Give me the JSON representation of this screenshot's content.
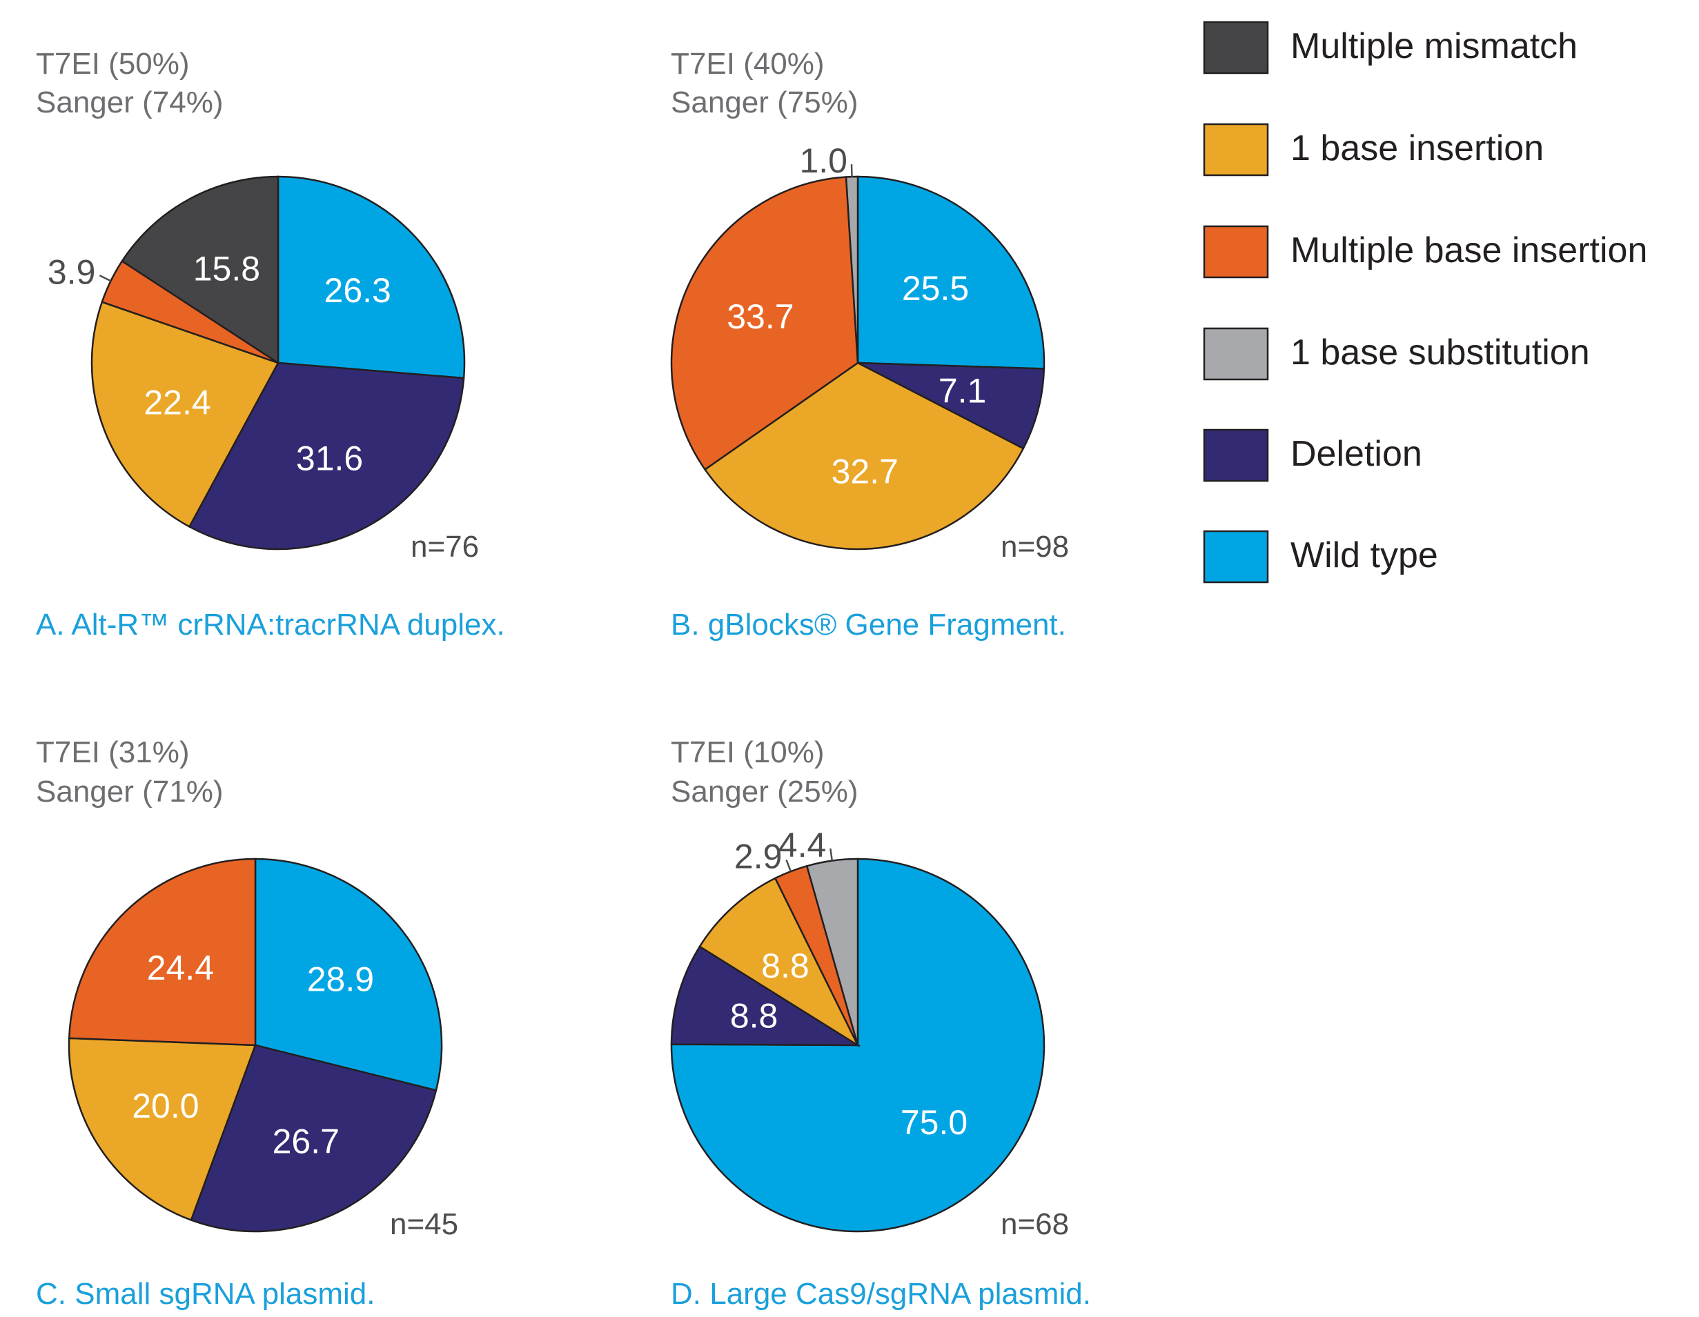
{
  "colors": {
    "multiple_mismatch": "#454547",
    "one_base_insertion": "#eba727",
    "multiple_base_insertion": "#e86424",
    "one_base_substitution": "#a7a9ac",
    "deletion": "#322b73",
    "wild_type": "#00a6e4",
    "caption": "#1aa0db",
    "header": "#6d6e71"
  },
  "legend": [
    {
      "key": "multiple_mismatch",
      "label": "Multiple mismatch"
    },
    {
      "key": "one_base_insertion",
      "label": "1 base insertion"
    },
    {
      "key": "multiple_base_insertion",
      "label": "Multiple base insertion"
    },
    {
      "key": "one_base_substitution",
      "label": "1 base substitution"
    },
    {
      "key": "deletion",
      "label": "Deletion"
    },
    {
      "key": "wild_type",
      "label": "Wild type"
    }
  ],
  "chart_data": [
    {
      "type": "pie",
      "id": "A",
      "t7ei": "T7EI (50%)",
      "sanger": "Sanger (74%)",
      "n": "n=76",
      "caption": "A. Alt-R™ crRNA:tracrRNA duplex.",
      "slices": [
        {
          "key": "wild_type",
          "value": 26.3,
          "label": "26.3"
        },
        {
          "key": "deletion",
          "value": 31.6,
          "label": "31.6"
        },
        {
          "key": "one_base_insertion",
          "value": 22.4,
          "label": "22.4"
        },
        {
          "key": "multiple_base_insertion",
          "value": 3.9,
          "label": "3.9"
        },
        {
          "key": "multiple_mismatch",
          "value": 15.8,
          "label": "15.8"
        }
      ]
    },
    {
      "type": "pie",
      "id": "B",
      "t7ei": "T7EI (40%)",
      "sanger": "Sanger (75%)",
      "n": "n=98",
      "caption": "B. gBlocks® Gene Fragment.",
      "slices": [
        {
          "key": "wild_type",
          "value": 25.5,
          "label": "25.5"
        },
        {
          "key": "deletion",
          "value": 7.1,
          "label": "7.1"
        },
        {
          "key": "one_base_insertion",
          "value": 32.7,
          "label": "32.7"
        },
        {
          "key": "multiple_base_insertion",
          "value": 33.7,
          "label": "33.7"
        },
        {
          "key": "one_base_substitution",
          "value": 1.0,
          "label": "1.0"
        }
      ]
    },
    {
      "type": "pie",
      "id": "C",
      "t7ei": "T7EI (31%)",
      "sanger": "Sanger (71%)",
      "n": "n=45",
      "caption": "C. Small sgRNA plasmid.",
      "slices": [
        {
          "key": "wild_type",
          "value": 28.9,
          "label": "28.9"
        },
        {
          "key": "deletion",
          "value": 26.7,
          "label": "26.7"
        },
        {
          "key": "one_base_insertion",
          "value": 20.0,
          "label": "20.0"
        },
        {
          "key": "multiple_base_insertion",
          "value": 24.4,
          "label": "24.4"
        }
      ]
    },
    {
      "type": "pie",
      "id": "D",
      "t7ei": "T7EI (10%)",
      "sanger": "Sanger (25%)",
      "n": "n=68",
      "caption": "D. Large Cas9/sgRNA plasmid.",
      "slices": [
        {
          "key": "wild_type",
          "value": 75.0,
          "label": "75.0"
        },
        {
          "key": "deletion",
          "value": 8.8,
          "label": "8.8"
        },
        {
          "key": "one_base_insertion",
          "value": 8.8,
          "label": "8.8"
        },
        {
          "key": "multiple_base_insertion",
          "value": 2.9,
          "label": "2.9"
        },
        {
          "key": "one_base_substitution",
          "value": 4.4,
          "label": "4.4"
        }
      ]
    }
  ]
}
